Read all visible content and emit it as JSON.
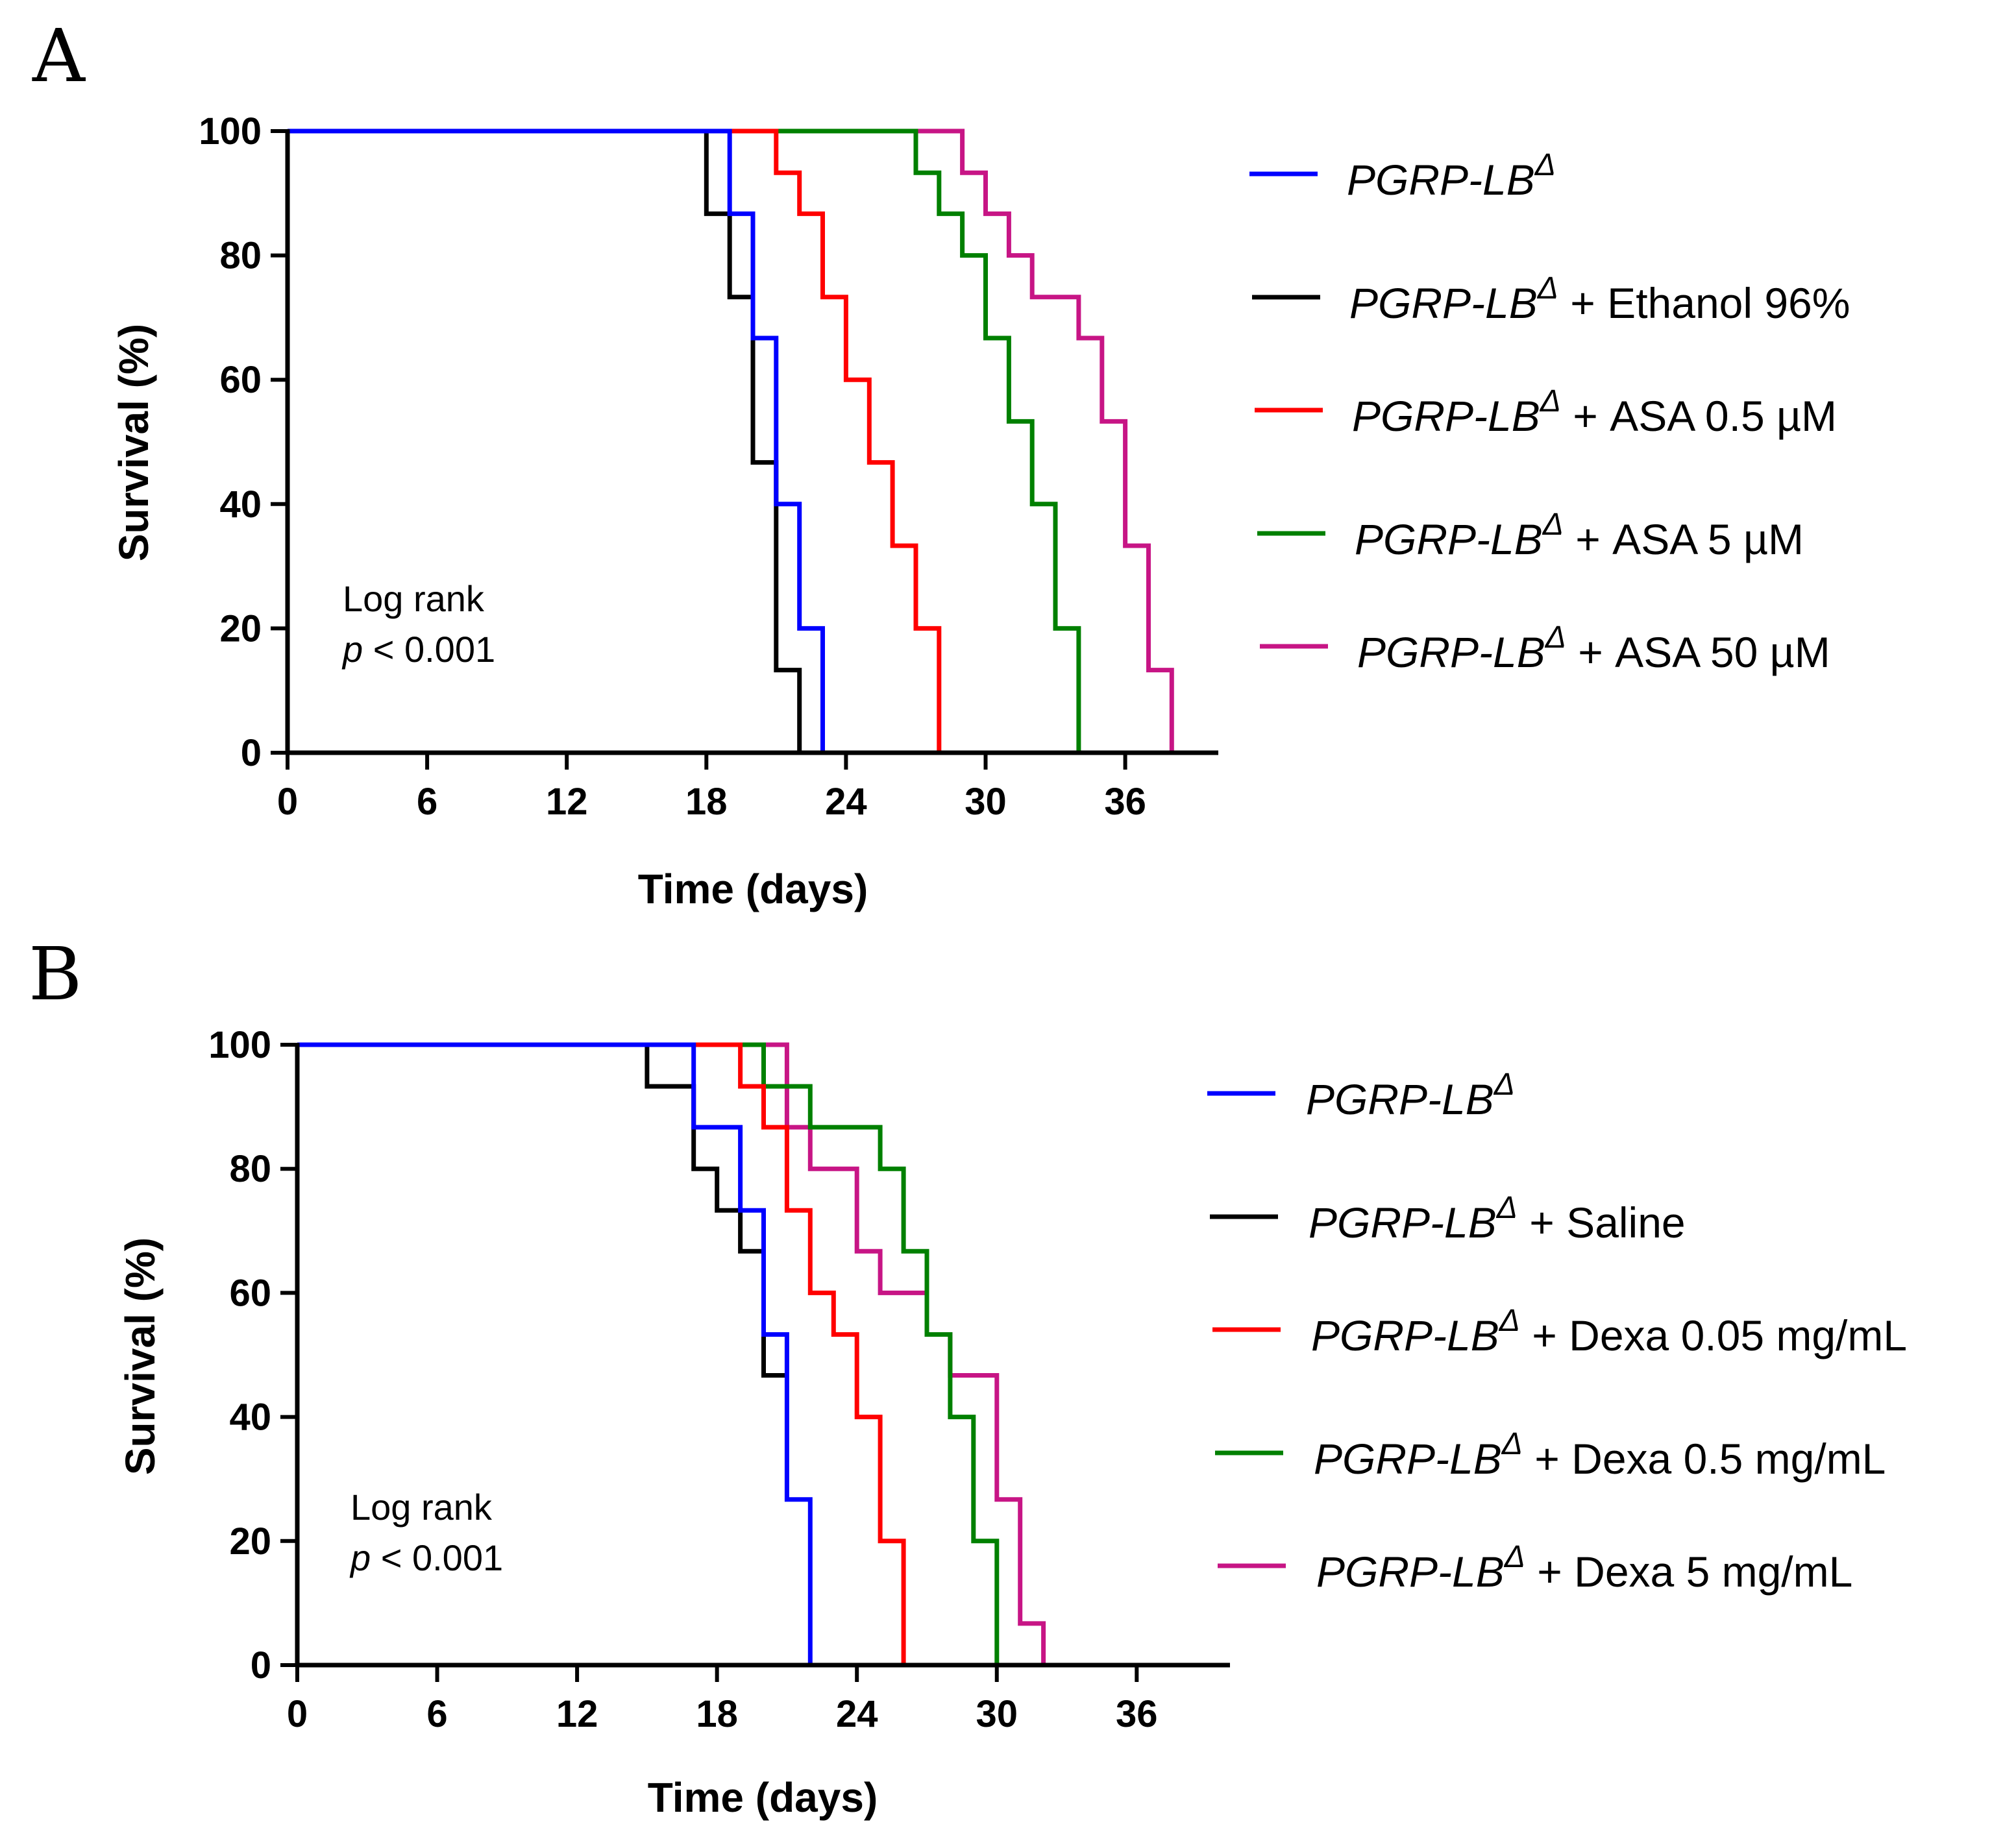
{
  "figure": {
    "panels": [
      {
        "letter": "A",
        "annotation": {
          "line1": "Log rank",
          "p": "p",
          "rest": " < 0.001"
        }
      },
      {
        "letter": "B",
        "annotation": {
          "line1": "Log rank",
          "p": "p",
          "rest": " < 0.001"
        }
      }
    ]
  },
  "chart_data": [
    {
      "type": "line",
      "subtype": "kaplan-meier",
      "panel": "A",
      "xlabel": "Time (days)",
      "ylabel": "Survival (%)",
      "xlim": [
        0,
        40
      ],
      "ylim": [
        0,
        100
      ],
      "xticks": [
        0,
        6,
        12,
        18,
        24,
        30,
        36
      ],
      "yticks": [
        0,
        20,
        40,
        60,
        80,
        100
      ],
      "grid": false,
      "legend_position": "right",
      "series": [
        {
          "name": "PGRP-LB",
          "italic": "PGRP-LB",
          "sup": "Δ",
          "suffix": "",
          "color": "#0000ff",
          "points": [
            [
              0,
              100
            ],
            [
              19,
              100
            ],
            [
              19,
              86.7
            ],
            [
              20,
              86.7
            ],
            [
              20,
              66.7
            ],
            [
              21,
              66.7
            ],
            [
              21,
              40
            ],
            [
              22,
              40
            ],
            [
              22,
              20
            ],
            [
              23,
              20
            ],
            [
              23,
              0
            ]
          ]
        },
        {
          "name": "PGRP-LB + Ethanol 96%",
          "italic": "PGRP-LB",
          "sup": "Δ",
          "suffix": " + Ethanol 96%",
          "color": "#000000",
          "points": [
            [
              0,
              100
            ],
            [
              18,
              100
            ],
            [
              18,
              86.7
            ],
            [
              19,
              86.7
            ],
            [
              19,
              73.3
            ],
            [
              20,
              73.3
            ],
            [
              20,
              46.7
            ],
            [
              21,
              46.7
            ],
            [
              21,
              13.3
            ],
            [
              22,
              13.3
            ],
            [
              22,
              0
            ]
          ]
        },
        {
          "name": "PGRP-LB + ASA 0.5 µM",
          "italic": "PGRP-LB",
          "sup": "Δ",
          "suffix": " + ASA 0.5 µM",
          "color": "#ff0000",
          "points": [
            [
              0,
              100
            ],
            [
              21,
              100
            ],
            [
              21,
              93.3
            ],
            [
              22,
              93.3
            ],
            [
              22,
              86.7
            ],
            [
              23,
              86.7
            ],
            [
              23,
              73.3
            ],
            [
              24,
              73.3
            ],
            [
              24,
              60
            ],
            [
              25,
              60
            ],
            [
              25,
              46.7
            ],
            [
              26,
              46.7
            ],
            [
              26,
              33.3
            ],
            [
              27,
              33.3
            ],
            [
              27,
              20
            ],
            [
              28,
              20
            ],
            [
              28,
              0
            ]
          ]
        },
        {
          "name": "PGRP-LB + ASA 5 µM",
          "italic": "PGRP-LB",
          "sup": "Δ",
          "suffix": " + ASA 5 µM",
          "color": "#008000",
          "points": [
            [
              0,
              100
            ],
            [
              27,
              100
            ],
            [
              27,
              93.3
            ],
            [
              28,
              93.3
            ],
            [
              28,
              86.7
            ],
            [
              29,
              86.7
            ],
            [
              29,
              80
            ],
            [
              30,
              80
            ],
            [
              30,
              66.7
            ],
            [
              31,
              66.7
            ],
            [
              31,
              53.3
            ],
            [
              32,
              53.3
            ],
            [
              32,
              40
            ],
            [
              33,
              40
            ],
            [
              33,
              20
            ],
            [
              34,
              20
            ],
            [
              34,
              0
            ]
          ]
        },
        {
          "name": "PGRP-LB + ASA 50 µM",
          "italic": "PGRP-LB",
          "sup": "Δ",
          "suffix": " + ASA 50 µM",
          "color": "#c71585",
          "points": [
            [
              0,
              100
            ],
            [
              29,
              100
            ],
            [
              29,
              93.3
            ],
            [
              30,
              93.3
            ],
            [
              30,
              86.7
            ],
            [
              31,
              86.7
            ],
            [
              31,
              80
            ],
            [
              32,
              80
            ],
            [
              32,
              73.3
            ],
            [
              34,
              73.3
            ],
            [
              34,
              66.7
            ],
            [
              35,
              66.7
            ],
            [
              35,
              53.3
            ],
            [
              36,
              53.3
            ],
            [
              36,
              33.3
            ],
            [
              37,
              33.3
            ],
            [
              37,
              13.3
            ],
            [
              38,
              13.3
            ],
            [
              38,
              0
            ]
          ]
        }
      ]
    },
    {
      "type": "line",
      "subtype": "kaplan-meier",
      "panel": "B",
      "xlabel": "Time (days)",
      "ylabel": "Survival (%)",
      "xlim": [
        0,
        40
      ],
      "ylim": [
        0,
        100
      ],
      "xticks": [
        0,
        6,
        12,
        18,
        24,
        30,
        36
      ],
      "yticks": [
        0,
        20,
        40,
        60,
        80,
        100
      ],
      "grid": false,
      "legend_position": "right",
      "series": [
        {
          "name": "PGRP-LB",
          "italic": "PGRP-LB",
          "sup": "Δ",
          "suffix": "",
          "color": "#0000ff",
          "points": [
            [
              0,
              100
            ],
            [
              17,
              100
            ],
            [
              17,
              86.7
            ],
            [
              19,
              86.7
            ],
            [
              19,
              73.3
            ],
            [
              20,
              73.3
            ],
            [
              20,
              53.3
            ],
            [
              21,
              53.3
            ],
            [
              21,
              26.7
            ],
            [
              22,
              26.7
            ],
            [
              22,
              0
            ]
          ]
        },
        {
          "name": "PGRP-LB + Saline",
          "italic": "PGRP-LB",
          "sup": "Δ",
          "suffix": " + Saline",
          "color": "#000000",
          "points": [
            [
              0,
              100
            ],
            [
              15,
              100
            ],
            [
              15,
              93.3
            ],
            [
              17,
              93.3
            ],
            [
              17,
              80
            ],
            [
              18,
              80
            ],
            [
              18,
              73.3
            ],
            [
              19,
              73.3
            ],
            [
              19,
              66.7
            ],
            [
              20,
              66.7
            ],
            [
              20,
              46.7
            ],
            [
              21,
              46.7
            ]
          ]
        },
        {
          "name": "PGRP-LB + Dexa 0.05 mg/mL",
          "italic": "PGRP-LB",
          "sup": "Δ",
          "suffix": " + Dexa 0.05 mg/mL",
          "color": "#ff0000",
          "points": [
            [
              0,
              100
            ],
            [
              19,
              100
            ],
            [
              19,
              93.3
            ],
            [
              20,
              93.3
            ],
            [
              20,
              86.7
            ],
            [
              21,
              86.7
            ],
            [
              21,
              73.3
            ],
            [
              22,
              73.3
            ],
            [
              22,
              60
            ],
            [
              23,
              60
            ],
            [
              23,
              53.3
            ],
            [
              24,
              53.3
            ],
            [
              24,
              40
            ],
            [
              25,
              40
            ],
            [
              25,
              20
            ],
            [
              26,
              20
            ],
            [
              26,
              0
            ]
          ]
        },
        {
          "name": "PGRP-LB + Dexa 0.5 mg/mL",
          "italic": "PGRP-LB",
          "sup": "Δ",
          "suffix": " + Dexa 0.5 mg/mL",
          "color": "#008000",
          "points": [
            [
              0,
              100
            ],
            [
              20,
              100
            ],
            [
              20,
              93.3
            ],
            [
              22,
              93.3
            ],
            [
              22,
              86.7
            ],
            [
              25,
              86.7
            ],
            [
              25,
              80
            ],
            [
              26,
              80
            ],
            [
              26,
              66.7
            ],
            [
              27,
              66.7
            ],
            [
              27,
              53.3
            ],
            [
              28,
              53.3
            ],
            [
              28,
              40
            ],
            [
              29,
              40
            ],
            [
              29,
              20
            ],
            [
              30,
              20
            ],
            [
              30,
              0
            ]
          ]
        },
        {
          "name": "PGRP-LB + Dexa 5 mg/mL",
          "italic": "PGRP-LB",
          "sup": "Δ",
          "suffix": " + Dexa 5 mg/mL",
          "color": "#c71585",
          "points": [
            [
              0,
              100
            ],
            [
              21,
              100
            ],
            [
              21,
              86.7
            ],
            [
              22,
              86.7
            ],
            [
              22,
              80
            ],
            [
              24,
              80
            ],
            [
              24,
              66.7
            ],
            [
              25,
              66.7
            ],
            [
              25,
              60
            ],
            [
              27,
              60
            ],
            [
              27,
              53.3
            ],
            [
              28,
              53.3
            ],
            [
              28,
              46.7
            ],
            [
              30,
              46.7
            ],
            [
              30,
              26.7
            ],
            [
              31,
              26.7
            ],
            [
              31,
              6.7
            ],
            [
              32,
              6.7
            ],
            [
              32,
              0
            ]
          ]
        }
      ]
    }
  ]
}
